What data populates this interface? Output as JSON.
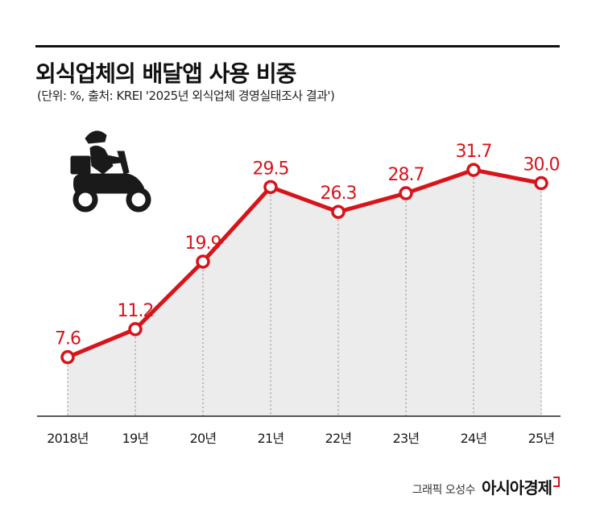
{
  "header": {
    "title": "외식업체의 배달앱 사용 비중",
    "subtitle": "(단위: %, 출처: KREI '2025년 외식업체 경영실태조사 결과')"
  },
  "credit": {
    "text": "그래픽 오성수",
    "brand": "아시아경제"
  },
  "colors": {
    "line": "#d7141a",
    "fill": "#ececec",
    "dotted": "#9a9a9a",
    "baseline": "#222222",
    "label": "#d7141a"
  },
  "icon": {
    "name": "delivery-scooter-icon"
  },
  "chart_data": {
    "type": "area",
    "categories": [
      "2018년",
      "19년",
      "20년",
      "21년",
      "22년",
      "23년",
      "24년",
      "25년"
    ],
    "series": [
      {
        "values": [
          7.6,
          11.2,
          19.9,
          29.5,
          26.3,
          28.7,
          31.7,
          30.0
        ],
        "labels": [
          "7.6",
          "11.2",
          "19.9",
          "29.5",
          "26.3",
          "28.7",
          "31.7",
          "30.0"
        ]
      }
    ],
    "ylim": [
      0,
      40
    ],
    "grid": false,
    "legend": "none"
  }
}
